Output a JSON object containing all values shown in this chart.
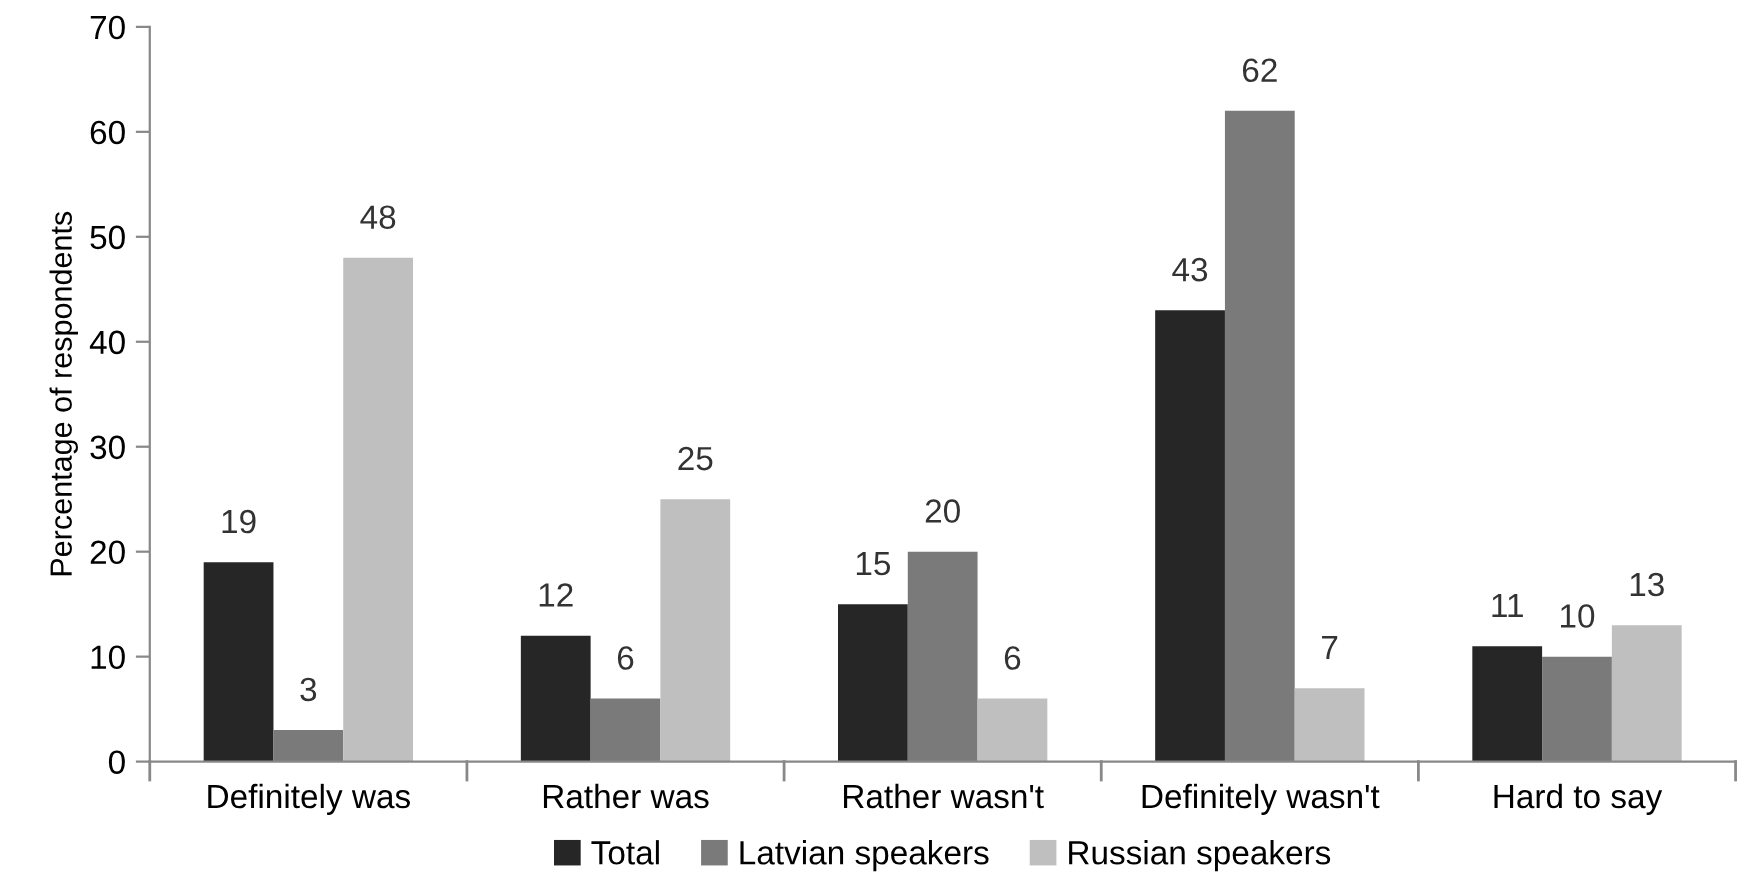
{
  "chart_data": {
    "type": "bar",
    "ylabel": "Percentage of respondents",
    "categories": [
      "Definitely was",
      "Rather was",
      "Rather wasn't",
      "Definitely wasn't",
      "Hard to say"
    ],
    "series": [
      {
        "name": "Total",
        "color": "#262626",
        "values": [
          19,
          12,
          15,
          43,
          11
        ]
      },
      {
        "name": "Latvian speakers",
        "color": "#7a7a7a",
        "values": [
          3,
          6,
          20,
          62,
          10
        ]
      },
      {
        "name": "Russian speakers",
        "color": "#bfbfbf",
        "values": [
          48,
          25,
          6,
          7,
          13
        ]
      }
    ],
    "ylim": [
      0,
      70
    ],
    "yticks": [
      0,
      10,
      20,
      30,
      40,
      50,
      60,
      70
    ],
    "data_labels": true,
    "legend": "bottom",
    "grid": false
  }
}
